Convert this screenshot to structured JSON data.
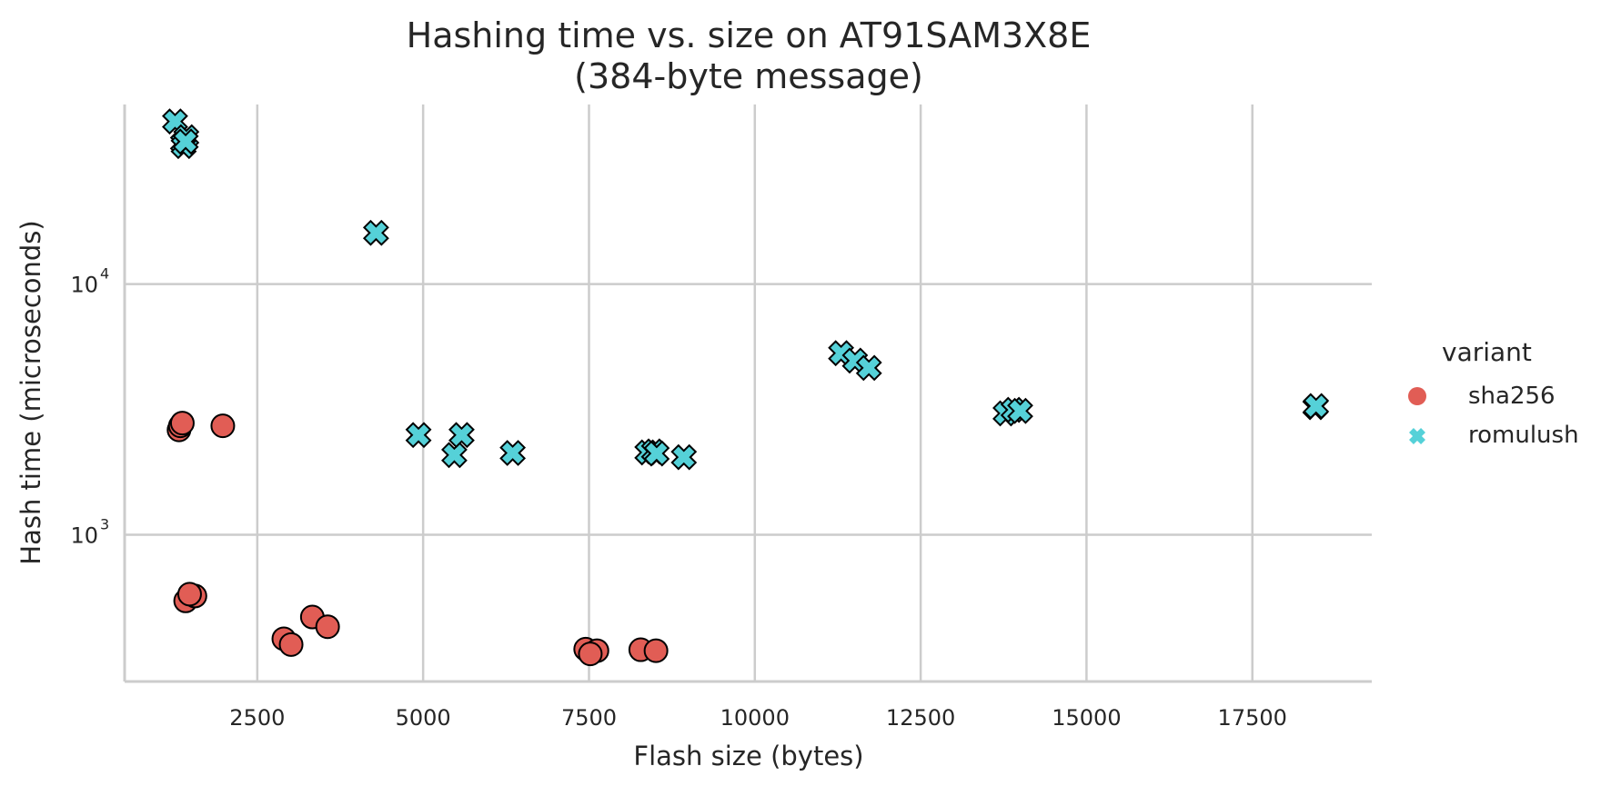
{
  "chart_data": {
    "type": "scatter",
    "title_line1": "Hashing time vs. size on AT91SAM3X8E",
    "title_line2": "(384-byte message)",
    "xlabel": "Flash size (bytes)",
    "ylabel": "Hash time (microseconds)",
    "xlim": [
      500,
      19300
    ],
    "ylim": [
      260,
      52000
    ],
    "yscale": "log",
    "grid": true,
    "x_ticks": [
      2500,
      5000,
      7500,
      10000,
      12500,
      15000,
      17500
    ],
    "y_ticks": [
      1000,
      10000
    ],
    "y_tick_labels": [
      {
        "base": "10",
        "exp": "3"
      },
      {
        "base": "10",
        "exp": "4"
      }
    ],
    "legend": {
      "title": "variant",
      "placement": "center-right"
    },
    "series": [
      {
        "name": "sha256",
        "marker": "circle",
        "color": "#e15d55",
        "points": [
          {
            "x": 1320,
            "y": 2620
          },
          {
            "x": 1340,
            "y": 2720
          },
          {
            "x": 1370,
            "y": 2790
          },
          {
            "x": 1980,
            "y": 2720
          },
          {
            "x": 1420,
            "y": 545
          },
          {
            "x": 1560,
            "y": 570
          },
          {
            "x": 1480,
            "y": 580
          },
          {
            "x": 2900,
            "y": 385
          },
          {
            "x": 3010,
            "y": 365
          },
          {
            "x": 3330,
            "y": 470
          },
          {
            "x": 3560,
            "y": 430
          },
          {
            "x": 7450,
            "y": 350
          },
          {
            "x": 7620,
            "y": 345
          },
          {
            "x": 7520,
            "y": 335
          },
          {
            "x": 8280,
            "y": 348
          },
          {
            "x": 8510,
            "y": 345
          }
        ]
      },
      {
        "name": "romulush",
        "marker": "x",
        "color": "#55d1d8",
        "points": [
          {
            "x": 1260,
            "y": 44500
          },
          {
            "x": 1380,
            "y": 36500
          },
          {
            "x": 1430,
            "y": 38500
          },
          {
            "x": 1390,
            "y": 35500
          },
          {
            "x": 1420,
            "y": 37000
          },
          {
            "x": 4290,
            "y": 16000
          },
          {
            "x": 4930,
            "y": 2500
          },
          {
            "x": 5470,
            "y": 2080
          },
          {
            "x": 5580,
            "y": 2500
          },
          {
            "x": 6350,
            "y": 2120
          },
          {
            "x": 8380,
            "y": 2130
          },
          {
            "x": 8480,
            "y": 2150
          },
          {
            "x": 8520,
            "y": 2110
          },
          {
            "x": 8930,
            "y": 2040
          },
          {
            "x": 11300,
            "y": 5300
          },
          {
            "x": 11510,
            "y": 4950
          },
          {
            "x": 11720,
            "y": 4630
          },
          {
            "x": 13780,
            "y": 3050
          },
          {
            "x": 13900,
            "y": 3150
          },
          {
            "x": 14000,
            "y": 3120
          },
          {
            "x": 18450,
            "y": 3230
          },
          {
            "x": 18460,
            "y": 3260
          }
        ]
      }
    ]
  }
}
